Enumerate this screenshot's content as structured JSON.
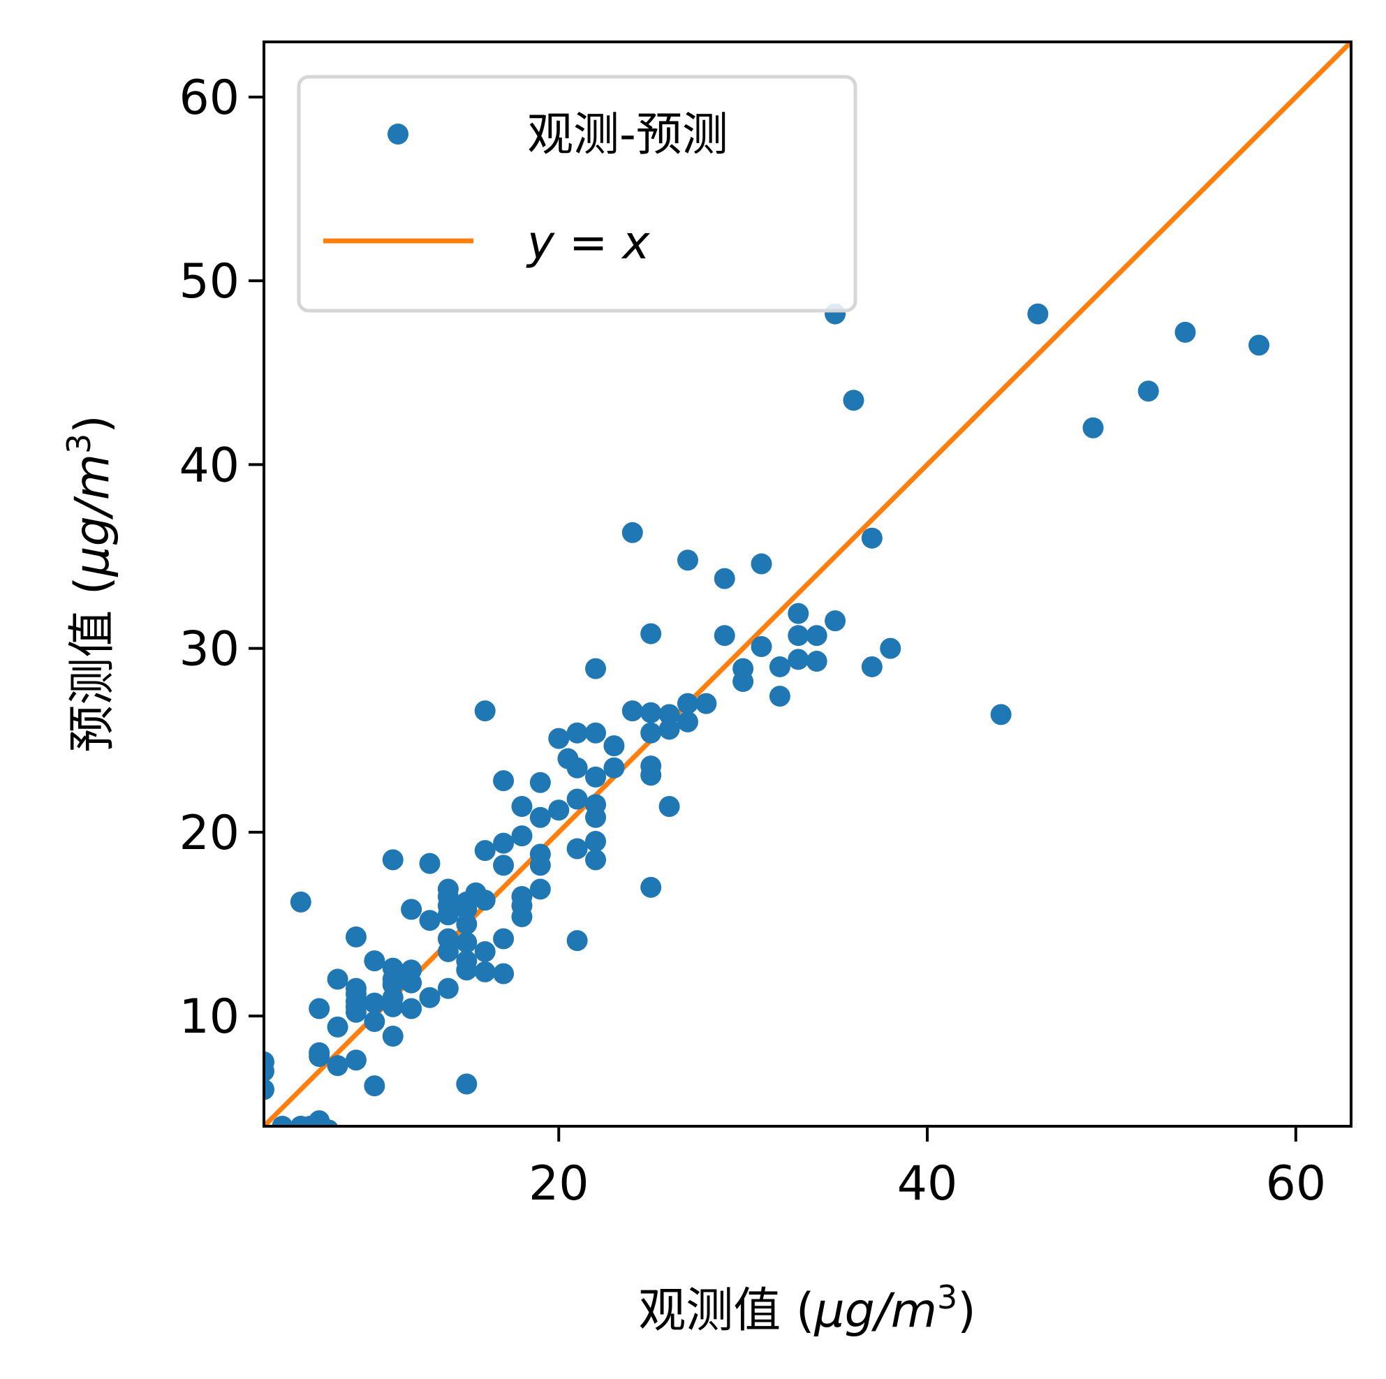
{
  "chart_data": {
    "type": "scatter",
    "xlabel": {
      "prefix": "观测值 (",
      "italic": "μg/m",
      "sup": "3",
      "suffix": ")"
    },
    "ylabel": {
      "prefix": "预测值 (",
      "italic": "μg/m",
      "sup": "3",
      "suffix": ")"
    },
    "xlim": [
      4,
      63
    ],
    "ylim": [
      4,
      63
    ],
    "xticks": [
      20,
      40,
      60
    ],
    "yticks": [
      10,
      20,
      30,
      40,
      50,
      60
    ],
    "grid": false,
    "legend_position": "top-left",
    "series": [
      {
        "name": "观测-预测",
        "kind": "scatter",
        "color": "#1f77b4",
        "points": [
          [
            4,
            7.5
          ],
          [
            4,
            7
          ],
          [
            4,
            6
          ],
          [
            5,
            4
          ],
          [
            6,
            16.2
          ],
          [
            6,
            4
          ],
          [
            6.5,
            4
          ],
          [
            7,
            4.3
          ],
          [
            7,
            4.1
          ],
          [
            7.5,
            3.8
          ],
          [
            7,
            10.4
          ],
          [
            7,
            8
          ],
          [
            7,
            7.8
          ],
          [
            8,
            9.4
          ],
          [
            8,
            12
          ],
          [
            8,
            7.3
          ],
          [
            9,
            14.3
          ],
          [
            9,
            11.5
          ],
          [
            9,
            11.2
          ],
          [
            9,
            10.8
          ],
          [
            9,
            10.5
          ],
          [
            9,
            10.2
          ],
          [
            9,
            7.6
          ],
          [
            10,
            13
          ],
          [
            10,
            10.7
          ],
          [
            10,
            9.7
          ],
          [
            10,
            6.2
          ],
          [
            11,
            18.5
          ],
          [
            11,
            12.6
          ],
          [
            11,
            12
          ],
          [
            11,
            11.7
          ],
          [
            11,
            11
          ],
          [
            11,
            10.5
          ],
          [
            11,
            8.9
          ],
          [
            12,
            15.8
          ],
          [
            12,
            12.5
          ],
          [
            12,
            11.8
          ],
          [
            12,
            10.4
          ],
          [
            13,
            18.3
          ],
          [
            13,
            15.2
          ],
          [
            13,
            11
          ],
          [
            14,
            16.9
          ],
          [
            14,
            16.5
          ],
          [
            14,
            16
          ],
          [
            14,
            15.5
          ],
          [
            14,
            14.2
          ],
          [
            14,
            13.5
          ],
          [
            14,
            11.5
          ],
          [
            15,
            16.2
          ],
          [
            15,
            15.8
          ],
          [
            15,
            15
          ],
          [
            15,
            14
          ],
          [
            15,
            13
          ],
          [
            15,
            12.5
          ],
          [
            15,
            6.3
          ],
          [
            15.5,
            16.7
          ],
          [
            16,
            26.6
          ],
          [
            16,
            19
          ],
          [
            16,
            16.3
          ],
          [
            16,
            13.5
          ],
          [
            16,
            12.4
          ],
          [
            17,
            22.8
          ],
          [
            17,
            19.4
          ],
          [
            17,
            18.2
          ],
          [
            17,
            14.2
          ],
          [
            17,
            12.3
          ],
          [
            18,
            21.4
          ],
          [
            18,
            19.8
          ],
          [
            18,
            16.5
          ],
          [
            18,
            16
          ],
          [
            18,
            15.4
          ],
          [
            19,
            22.7
          ],
          [
            19,
            20.8
          ],
          [
            19,
            18.8
          ],
          [
            19,
            18.2
          ],
          [
            19,
            16.9
          ],
          [
            20,
            25.1
          ],
          [
            20,
            21.2
          ],
          [
            20.5,
            24
          ],
          [
            21,
            25.4
          ],
          [
            21,
            23.5
          ],
          [
            21,
            21.8
          ],
          [
            21,
            19.1
          ],
          [
            21,
            14.1
          ],
          [
            22,
            28.9
          ],
          [
            22,
            25.4
          ],
          [
            22,
            23
          ],
          [
            22,
            21.5
          ],
          [
            22,
            20.8
          ],
          [
            22,
            19.5
          ],
          [
            22,
            18.5
          ],
          [
            23,
            24.7
          ],
          [
            23,
            23.5
          ],
          [
            24,
            36.3
          ],
          [
            24,
            26.6
          ],
          [
            25,
            30.8
          ],
          [
            25,
            26.5
          ],
          [
            25,
            25.4
          ],
          [
            25,
            23.6
          ],
          [
            25,
            23.1
          ],
          [
            25,
            17
          ],
          [
            26,
            26.4
          ],
          [
            26,
            25.6
          ],
          [
            26,
            21.4
          ],
          [
            27,
            34.8
          ],
          [
            27,
            27
          ],
          [
            27,
            26
          ],
          [
            28,
            27
          ],
          [
            29,
            33.8
          ],
          [
            29,
            30.7
          ],
          [
            30,
            28.9
          ],
          [
            30,
            28.2
          ],
          [
            31,
            34.6
          ],
          [
            31,
            30.1
          ],
          [
            32,
            29
          ],
          [
            32,
            27.4
          ],
          [
            33,
            31.9
          ],
          [
            33,
            30.7
          ],
          [
            33,
            29.4
          ],
          [
            34,
            30.7
          ],
          [
            34,
            29.3
          ],
          [
            35,
            48.2
          ],
          [
            35,
            31.5
          ],
          [
            36,
            43.5
          ],
          [
            37,
            36
          ],
          [
            37,
            29
          ],
          [
            38,
            30
          ],
          [
            44,
            26.4
          ],
          [
            46,
            48.2
          ],
          [
            49,
            42
          ],
          [
            52,
            44
          ],
          [
            54,
            47.2
          ],
          [
            58,
            46.5
          ]
        ]
      },
      {
        "name": "y = x",
        "kind": "line",
        "color": "#ff7f0e",
        "points": [
          [
            4,
            4
          ],
          [
            63,
            63
          ]
        ]
      }
    ]
  },
  "legend": {
    "scatter_label": "观测-预测",
    "line_label": "y = x"
  }
}
